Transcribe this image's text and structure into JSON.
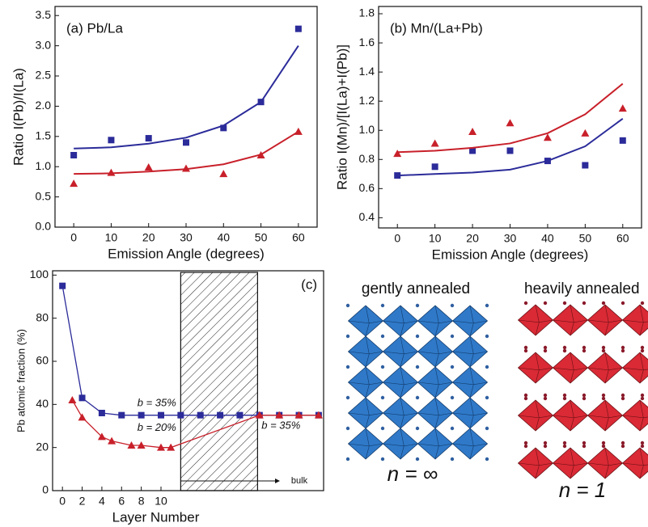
{
  "chart_data": [
    {
      "type": "scatter",
      "title": "(a) Pb/La",
      "x_label": "Emission Angle (degrees)",
      "y_label": "Ratio I(Pb)/I(La)",
      "x": [
        0,
        10,
        20,
        30,
        40,
        50,
        60
      ],
      "series": [
        {
          "color": "#2b2b9a",
          "marker": "square",
          "values": [
            1.19,
            1.44,
            1.47,
            1.4,
            1.64,
            2.07,
            3.28
          ]
        },
        {
          "color": "#2b2b9a",
          "marker": "none",
          "values": [
            1.3,
            1.32,
            1.38,
            1.48,
            1.68,
            2.07,
            3.0
          ]
        },
        {
          "color": "#c8202a",
          "marker": "triangle",
          "values": [
            0.72,
            0.9,
            0.99,
            0.97,
            0.88,
            1.19,
            1.58
          ]
        },
        {
          "color": "#c8202a",
          "marker": "none",
          "values": [
            0.88,
            0.89,
            0.92,
            0.96,
            1.04,
            1.2,
            1.58
          ]
        }
      ],
      "xlim": [
        -5,
        65
      ],
      "xticks": [
        0,
        10,
        20,
        30,
        40,
        50,
        60
      ],
      "ylim": [
        0,
        3.65
      ],
      "yticks": [
        {
          "value": 0,
          "label": "0.0"
        },
        0.5,
        {
          "value": 1,
          "label": "1.0"
        },
        1.5,
        {
          "value": 2,
          "label": "2.0"
        },
        2.5,
        {
          "value": 3,
          "label": "3.0"
        },
        3.5
      ]
    },
    {
      "type": "scatter",
      "title": "(b) Mn/(La+Pb)",
      "x_label": "Emission Angle (degrees)",
      "y_label": "Ratio I(Mn)/[I(La)+I(Pb)]",
      "x": [
        0,
        10,
        20,
        30,
        40,
        50,
        60
      ],
      "series": [
        {
          "color": "#2b2b9a",
          "marker": "square",
          "values": [
            0.69,
            0.75,
            0.86,
            0.86,
            0.79,
            0.76,
            0.93
          ]
        },
        {
          "color": "#2b2b9a",
          "marker": "none",
          "values": [
            0.69,
            0.7,
            0.71,
            0.73,
            0.79,
            0.89,
            1.08
          ]
        },
        {
          "color": "#c8202a",
          "marker": "triangle",
          "values": [
            0.84,
            0.91,
            0.99,
            1.05,
            0.95,
            0.98,
            1.15
          ]
        },
        {
          "color": "#c8202a",
          "marker": "none",
          "values": [
            0.85,
            0.86,
            0.88,
            0.91,
            0.98,
            1.11,
            1.32
          ]
        }
      ],
      "xlim": [
        -5,
        65
      ],
      "xticks": [
        0,
        10,
        20,
        30,
        40,
        50,
        60
      ],
      "ylim": [
        0.33,
        1.85
      ],
      "yticks": [
        0.4,
        0.6,
        0.8,
        {
          "value": 1,
          "label": "1.0"
        },
        1.2,
        1.4,
        1.6,
        1.8
      ]
    },
    {
      "type": "line",
      "title": "(c)",
      "x_label": "Layer Number",
      "y_label": "Pb atomic fraction (%)",
      "x_end_label": "bulk",
      "shaded_region": [
        12,
        19.8
      ],
      "annotations": [
        "b = 35%",
        "b = 20%",
        "b = 35%"
      ],
      "series": [
        {
          "color": "#2b2b9a",
          "marker": "square",
          "x": [
            0,
            2,
            4,
            6,
            8,
            10,
            12,
            14,
            16,
            18,
            20,
            22,
            24,
            26
          ],
          "values": [
            95,
            43,
            36,
            35,
            35,
            35,
            35,
            35,
            35,
            35,
            35,
            35,
            35,
            35
          ]
        },
        {
          "color": "#c8202a",
          "marker": "triangle",
          "x": [
            1,
            2,
            4,
            5,
            7,
            8,
            10,
            11,
            20,
            22,
            24,
            26
          ],
          "values": [
            42,
            34,
            25,
            23,
            21,
            21,
            20,
            20,
            35,
            35,
            35,
            35
          ]
        }
      ],
      "xlim": [
        -1,
        26.5
      ],
      "xticks": [
        0,
        2,
        4,
        6,
        8,
        10
      ],
      "ylim": [
        0,
        102
      ],
      "yticks": [
        0,
        20,
        40,
        60,
        80,
        100
      ]
    }
  ],
  "diagrams": [
    {
      "title": "gently annealed",
      "label": "n = ∞"
    },
    {
      "title": "heavily annealed",
      "label": "n = 1"
    }
  ]
}
